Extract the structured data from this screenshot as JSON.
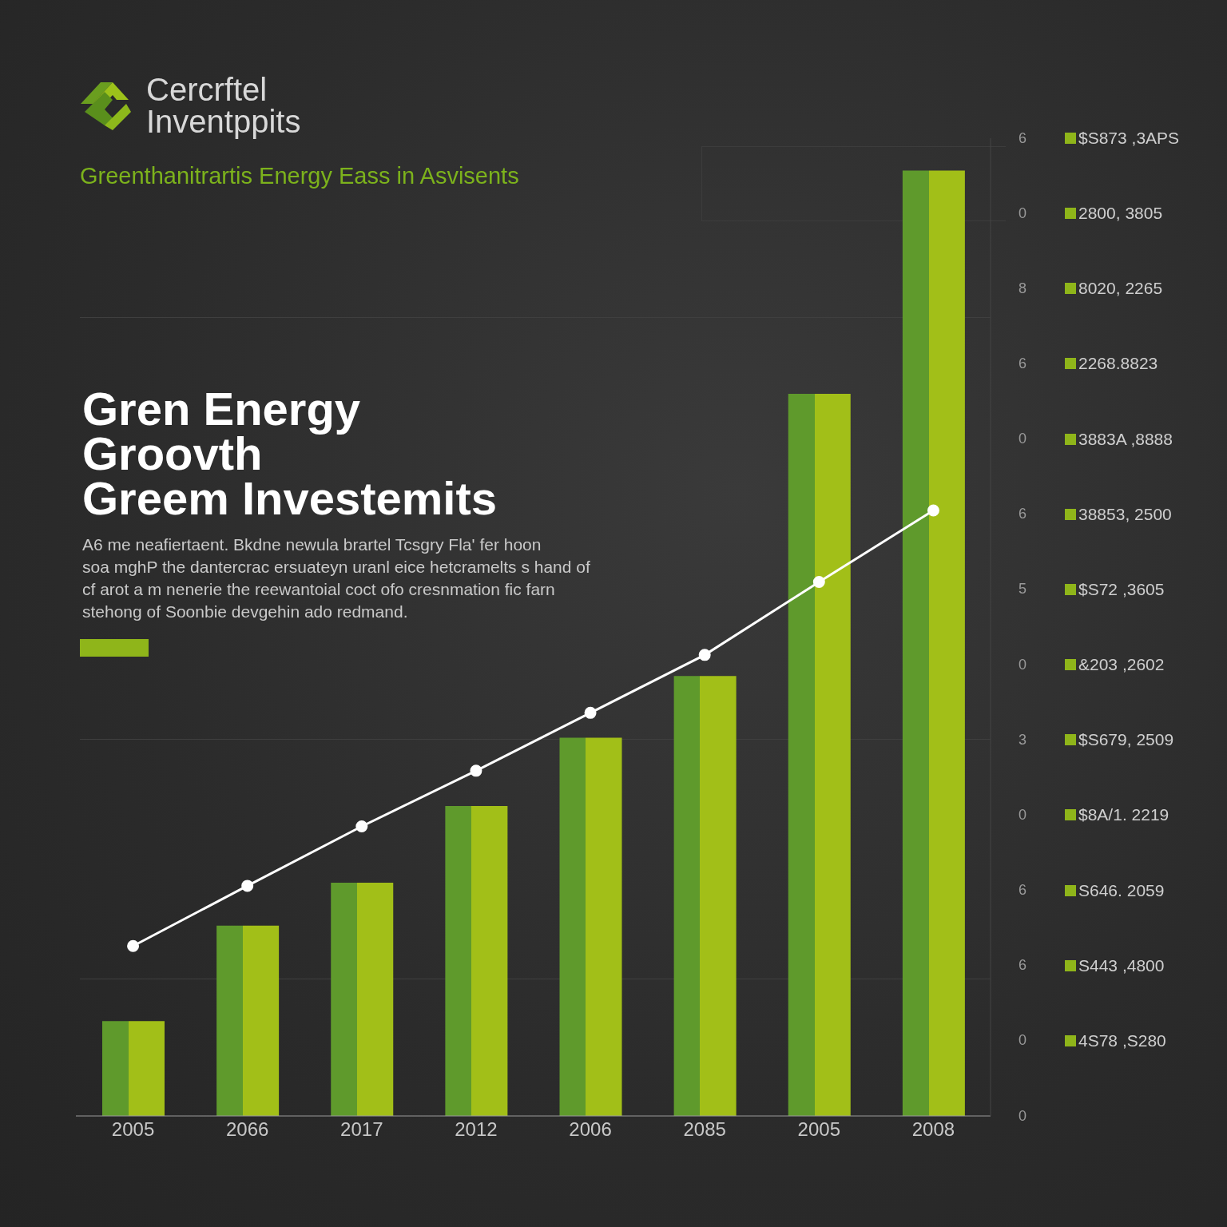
{
  "chart_data": {
    "type": "bar",
    "logo": [
      "Cercrftel",
      "Inventppits"
    ],
    "subtitle": "Greenthanitrartis Energy Eass in Asvisents",
    "title": [
      "Gren Energy",
      "Groovth",
      "Greem Investemits"
    ],
    "annotations": [
      "A6 me neafiertaent. Bkdne newula brartel Tcsgry Fla' fer hoon",
      "soa mghP the dantercrac ersuateyn uranl eice hetcramelts s hand of",
      "cf arot a m nenerie the reewantoial coct ofo cresnmation fic farn",
      "stehong of Soonbie devgehin ado redmand."
    ],
    "side_labels": [
      {
        "mark": "6",
        "text": "$S873 ,3APS"
      },
      {
        "mark": "0",
        "text": "2800, 3805"
      },
      {
        "mark": "8",
        "text": "8020, 2265"
      },
      {
        "mark": "6",
        "text": "2268.8823"
      },
      {
        "mark": "0",
        "text": "3883A ,8888"
      },
      {
        "mark": "6",
        "text": "38853, 2500"
      },
      {
        "mark": "5",
        "text": "$S72 ,3605"
      },
      {
        "mark": "0",
        "text": "&203 ,2602"
      },
      {
        "mark": "3",
        "text": "$S679, 2509"
      },
      {
        "mark": "0",
        "text": "$8A/1. 2219"
      },
      {
        "mark": "6",
        "text": "S646. 2059"
      },
      {
        "mark": "6",
        "text": "S443 ,4800"
      },
      {
        "mark": "0",
        "text": "4S78 ,S280"
      },
      {
        "mark": "0"
      }
    ],
    "categories": [
      "2005",
      "2066",
      "2017",
      "2012",
      "2006",
      "2085",
      "2005",
      "2008"
    ],
    "series": [
      {
        "type": "bar",
        "color": "#a2bf18",
        "values": [
          1.26,
          2.53,
          3.1,
          4.12,
          5.03,
          5.85,
          9.6,
          12.57
        ]
      },
      {
        "type": "line",
        "color": "#ffffff",
        "marker": "circle",
        "values": [
          2.26,
          3.06,
          3.85,
          4.59,
          5.36,
          6.13,
          7.1,
          8.05
        ]
      }
    ],
    "ylim": [
      0,
      13
    ],
    "tick_labels": "x",
    "grid": false
  }
}
